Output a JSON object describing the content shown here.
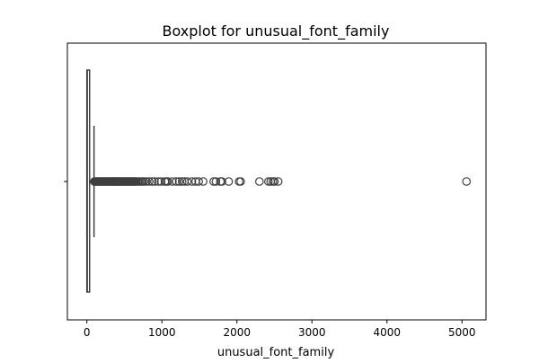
{
  "chart_data": {
    "type": "boxplot",
    "title": "Boxplot for unusual_font_family",
    "xlabel": "unusual_font_family",
    "ylabel": "",
    "xlim": [
      -260,
      5320
    ],
    "xticks": [
      0,
      1000,
      2000,
      3000,
      4000,
      5000
    ],
    "xtick_labels": [
      "0",
      "1000",
      "2000",
      "3000",
      "4000",
      "5000"
    ],
    "grid": false,
    "orientation": "horizontal",
    "box": {
      "q1": 0,
      "median": 5,
      "q3": 28,
      "whisker_low": 0,
      "whisker_high": 95
    },
    "outliers": [
      100,
      110,
      120,
      130,
      140,
      150,
      160,
      170,
      180,
      190,
      200,
      210,
      220,
      230,
      240,
      250,
      260,
      270,
      280,
      290,
      300,
      310,
      320,
      330,
      340,
      350,
      360,
      370,
      380,
      390,
      400,
      410,
      420,
      430,
      440,
      450,
      460,
      470,
      480,
      490,
      500,
      510,
      520,
      530,
      540,
      550,
      560,
      570,
      580,
      590,
      600,
      610,
      620,
      630,
      640,
      650,
      660,
      680,
      700,
      720,
      740,
      760,
      790,
      830,
      870,
      900,
      950,
      990,
      1040,
      1060,
      1080,
      1140,
      1190,
      1230,
      1270,
      1300,
      1340,
      1400,
      1450,
      1490,
      1550,
      1690,
      1720,
      1780,
      1800,
      1890,
      2030,
      2050,
      2300,
      2420,
      2450,
      2480,
      2500,
      2550,
      5060
    ],
    "colors": {
      "box_edge": "#3f3f3f",
      "outlier_edge": "#3f3f3f",
      "axes": "#000000"
    }
  }
}
